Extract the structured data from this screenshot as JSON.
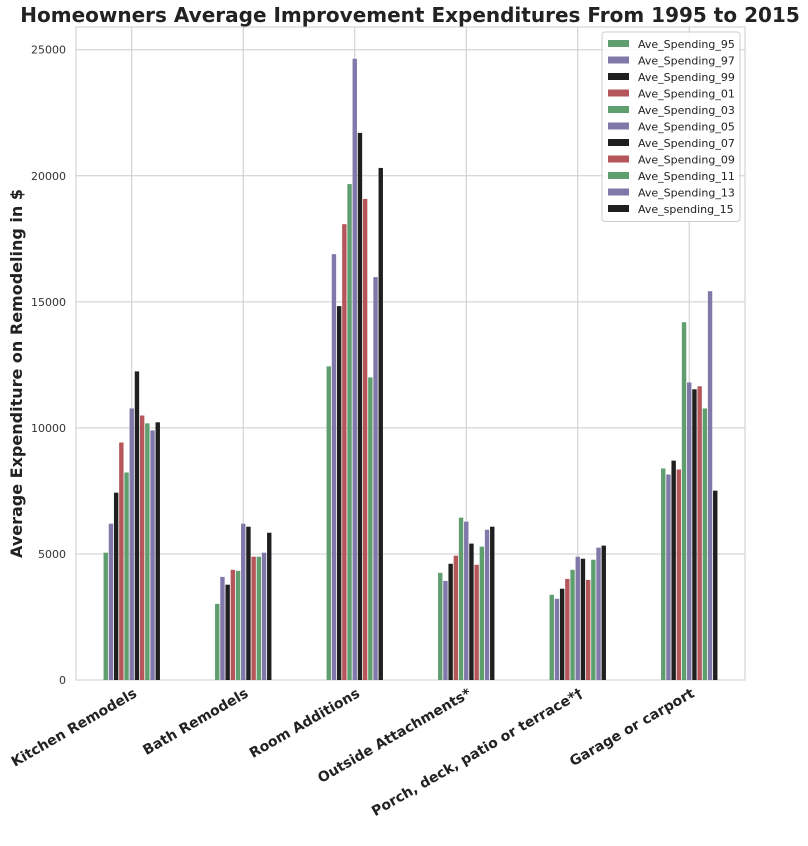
{
  "chart_data": {
    "type": "bar",
    "title": "Homeowners Average Improvement Expenditures From 1995 to 2015",
    "xlabel": "",
    "ylabel": "Average Expenditure on Remodeling in $",
    "ylim": [
      0,
      25900
    ],
    "yticks": [
      0,
      5000,
      10000,
      15000,
      20000,
      25000
    ],
    "grid": true,
    "legend_position": "top-right",
    "categories": [
      "Kitchen Remodels",
      "Bath Remodels",
      "Room Additions",
      "Outside Attachments*",
      "Porch, deck, patio or terrace*†",
      "Garage or carport"
    ],
    "series": [
      {
        "name": "Ave_Spending_95",
        "color": "#5f9e6e",
        "values": [
          5050,
          3020,
          12440,
          4250,
          3380,
          8390
        ]
      },
      {
        "name": "Ave_Spending_97",
        "color": "#8078a8",
        "values": [
          6200,
          4090,
          16890,
          3930,
          3220,
          8150
        ]
      },
      {
        "name": "Ave_Spending_99",
        "color": "#1f1f1f",
        "values": [
          7430,
          3780,
          14830,
          4610,
          3620,
          8700
        ]
      },
      {
        "name": "Ave_Spending_01",
        "color": "#b5575a",
        "values": [
          9420,
          4370,
          18080,
          4930,
          4010,
          8350
        ]
      },
      {
        "name": "Ave_Spending_03",
        "color": "#5f9e6e",
        "values": [
          8230,
          4330,
          19670,
          6440,
          4370,
          14190
        ]
      },
      {
        "name": "Ave_Spending_05",
        "color": "#8078a8",
        "values": [
          10770,
          6200,
          24640,
          6280,
          4890,
          11800
        ]
      },
      {
        "name": "Ave_Spending_07",
        "color": "#1f1f1f",
        "values": [
          12240,
          6080,
          21700,
          5410,
          4810,
          11530
        ]
      },
      {
        "name": "Ave_Spending_09",
        "color": "#b5575a",
        "values": [
          10490,
          4890,
          19080,
          4570,
          3970,
          11650
        ]
      },
      {
        "name": "Ave_Spending_11",
        "color": "#5f9e6e",
        "values": [
          10180,
          4890,
          12000,
          5290,
          4770,
          10770
        ]
      },
      {
        "name": "Ave_Spending_13",
        "color": "#8078a8",
        "values": [
          9900,
          5050,
          15980,
          5960,
          5250,
          15420
        ]
      },
      {
        "name": "Ave_spending_15",
        "color": "#1f1f1f",
        "values": [
          10220,
          5840,
          20310,
          6080,
          5330,
          7510
        ]
      }
    ]
  }
}
